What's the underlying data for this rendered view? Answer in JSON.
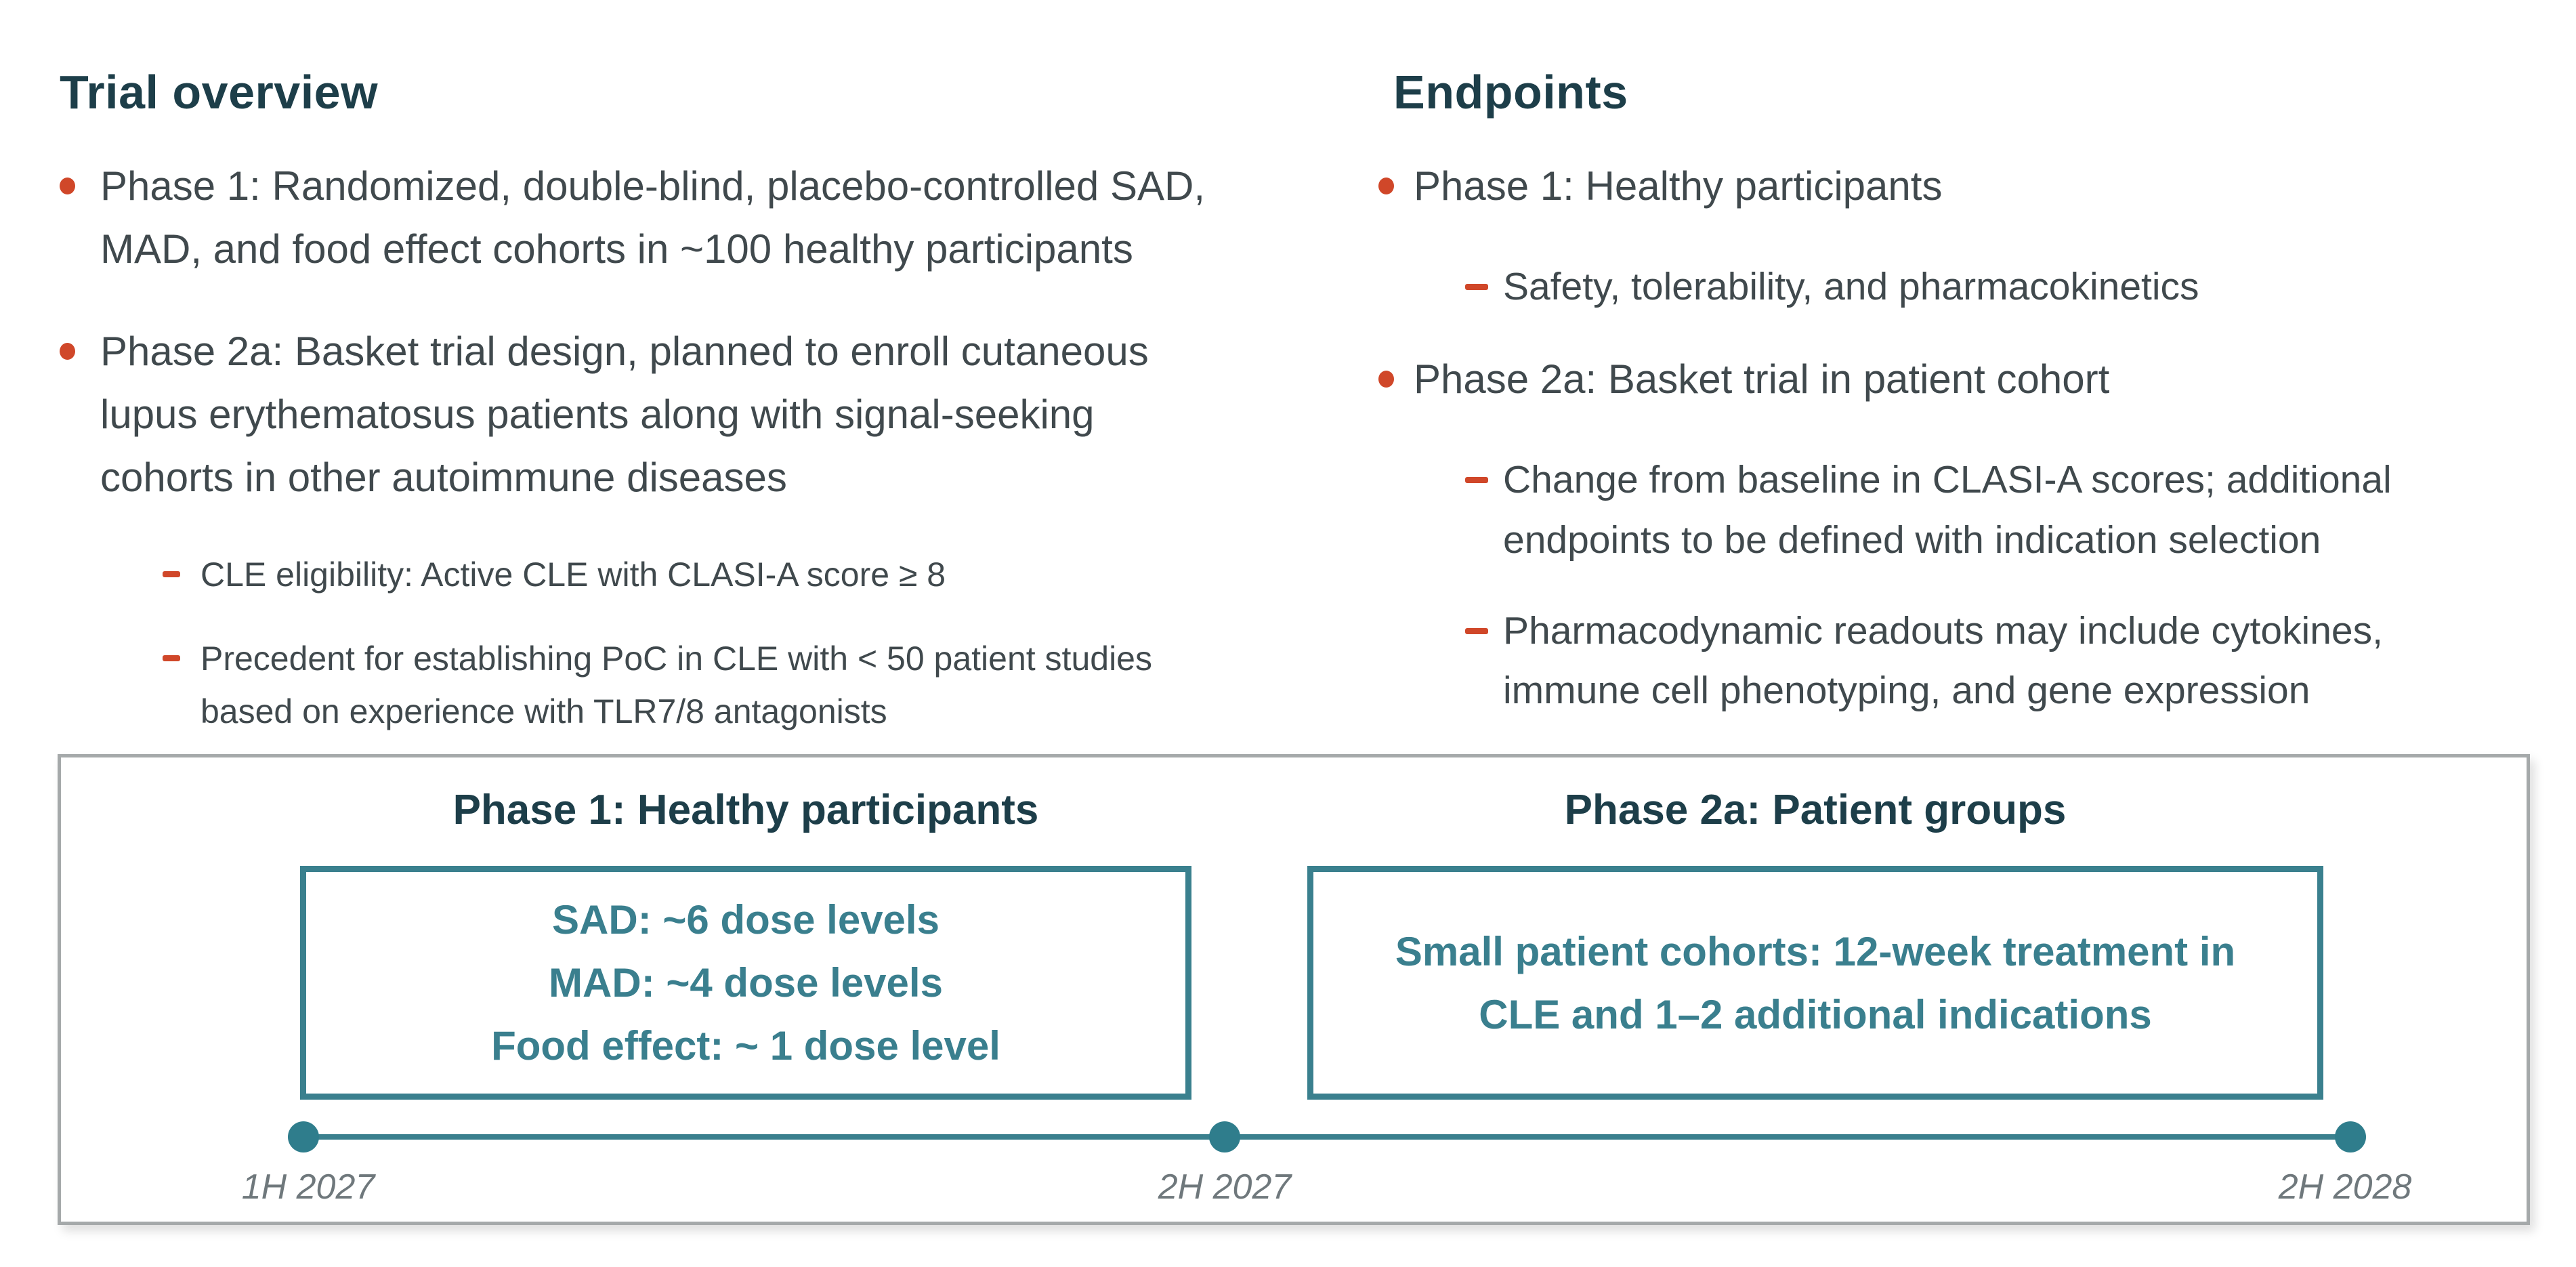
{
  "colors": {
    "heading_teal": "#1d3e49",
    "body_text": "#40494d",
    "accent_orange": "#d04729",
    "box_teal": "#3a808e",
    "panel_border_gray": "#a5a9aa",
    "timeline_label_gray": "#6f787c"
  },
  "left_column": {
    "title": "Trial overview",
    "bullet1": {
      "text": "Phase 1: Randomized, double-blind, placebo-controlled SAD,\nMAD, and food effect cohorts in ~100 healthy participants"
    },
    "bullet2": {
      "text": "Phase 2a: Basket trial design, planned to enroll cutaneous\nlupus erythematosus patients along with signal-seeking\ncohorts in other autoimmune diseases",
      "sub1": "CLE eligibility: Active CLE with CLASI-A score ≥ 8",
      "sub2": "Precedent for establishing PoC in CLE with < 50 patient studies\nbased on experience with TLR7/8 antagonists"
    }
  },
  "right_column": {
    "title": "Endpoints",
    "bullet1": {
      "text": "Phase 1: Healthy participants",
      "sub1": "Safety, tolerability, and pharmacokinetics"
    },
    "bullet2": {
      "text": "Phase 2a: Basket trial in patient cohort",
      "sub1": "Change from baseline in CLASI-A scores; additional\nendpoints to be defined with indication selection",
      "sub2": "Pharmacodynamic readouts may include cytokines,\nimmune cell phenotyping, and gene expression"
    }
  },
  "timeline": {
    "phase1": {
      "title": "Phase 1: Healthy participants",
      "box_text": "SAD: ~6 dose levels\nMAD: ~4 dose levels\nFood effect: ~ 1 dose level"
    },
    "phase2a": {
      "title": "Phase 2a: Patient groups",
      "box_text": "Small patient cohorts: 12-week treatment in\nCLE and 1–2 additional indications"
    },
    "milestones": [
      "1H 2027",
      "2H 2027",
      "2H 2028"
    ]
  }
}
